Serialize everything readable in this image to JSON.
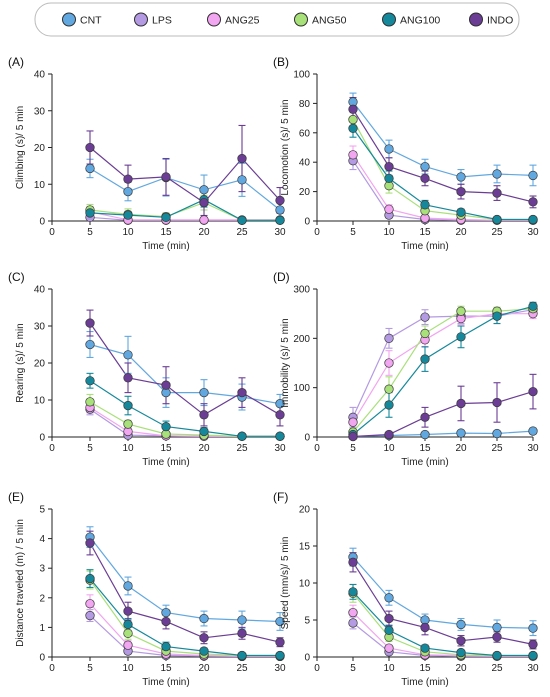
{
  "legend": [
    {
      "name": "CNT",
      "color": "#62a8e0"
    },
    {
      "name": "LPS",
      "color": "#b49ae2"
    },
    {
      "name": "ANG25",
      "color": "#f2a5f0"
    },
    {
      "name": "ANG50",
      "color": "#a8e07a"
    },
    {
      "name": "ANG100",
      "color": "#15899b"
    },
    {
      "name": "INDO",
      "color": "#6b3d94"
    }
  ],
  "chart_data": [
    {
      "type": "line",
      "panel": "(A)",
      "xlabel": "Time (min)",
      "ylabel": "Climbing (s)/ 5 min",
      "x": [
        5,
        10,
        15,
        20,
        25,
        30
      ],
      "xlim": [
        0,
        30
      ],
      "ylim": [
        0,
        40
      ],
      "xticks": [
        0,
        5,
        10,
        15,
        20,
        25,
        30
      ],
      "yticks": [
        0,
        10,
        20,
        30,
        40
      ],
      "series": [
        {
          "name": "CNT",
          "color": "#62a8e0",
          "values": [
            14.3,
            8.0,
            11.8,
            8.5,
            11.2,
            3.0
          ],
          "errors": [
            2.5,
            2.5,
            5.0,
            4.0,
            4.5,
            2.0
          ]
        },
        {
          "name": "LPS",
          "color": "#b49ae2",
          "values": [
            1.0,
            0.2,
            0.2,
            0.2,
            0.2,
            0.2
          ],
          "errors": [
            0.8,
            0.3,
            0.3,
            0.3,
            0.3,
            0.3
          ]
        },
        {
          "name": "ANG25",
          "color": "#f2a5f0",
          "values": [
            2.5,
            0.3,
            0.3,
            0.3,
            0.3,
            0.3
          ],
          "errors": [
            1.5,
            0.4,
            0.3,
            0.3,
            0.3,
            0.3
          ]
        },
        {
          "name": "ANG50",
          "color": "#a8e07a",
          "values": [
            3.0,
            1.8,
            1.2,
            5.0,
            0.2,
            0.2
          ],
          "errors": [
            1.5,
            1.5,
            1.0,
            2.0,
            0.3,
            0.3
          ]
        },
        {
          "name": "ANG100",
          "color": "#15899b",
          "values": [
            2.2,
            1.6,
            1.0,
            5.8,
            0.2,
            0.2
          ],
          "errors": [
            1.0,
            1.0,
            0.8,
            2.0,
            0.3,
            0.3
          ]
        },
        {
          "name": "INDO",
          "color": "#6b3d94",
          "values": [
            20.0,
            11.4,
            12.0,
            5.0,
            17.0,
            5.6
          ],
          "errors": [
            4.5,
            3.8,
            5.0,
            3.5,
            9.0,
            3.5
          ]
        }
      ]
    },
    {
      "type": "line",
      "panel": "(B)",
      "xlabel": "Time (min)",
      "ylabel": "Locomotion (s)/ 5 min",
      "x": [
        5,
        10,
        15,
        20,
        25,
        30
      ],
      "xlim": [
        0,
        30
      ],
      "ylim": [
        0,
        100
      ],
      "xticks": [
        0,
        5,
        10,
        15,
        20,
        25,
        30
      ],
      "yticks": [
        0,
        20,
        40,
        60,
        80,
        100
      ],
      "series": [
        {
          "name": "CNT",
          "color": "#62a8e0",
          "values": [
            81,
            49,
            37,
            30,
            32,
            31
          ],
          "errors": [
            6,
            6,
            5,
            5,
            6,
            7
          ]
        },
        {
          "name": "LPS",
          "color": "#b49ae2",
          "values": [
            41,
            4,
            1,
            0.5,
            0.5,
            0.5
          ],
          "errors": [
            6,
            2,
            1,
            0.5,
            0.5,
            0.5
          ]
        },
        {
          "name": "ANG25",
          "color": "#f2a5f0",
          "values": [
            45,
            8,
            2,
            1,
            0.5,
            0.5
          ],
          "errors": [
            6,
            3,
            1,
            0.5,
            0.5,
            0.5
          ]
        },
        {
          "name": "ANG50",
          "color": "#a8e07a",
          "values": [
            69,
            24,
            7,
            4,
            1,
            1
          ],
          "errors": [
            6,
            5,
            2,
            2,
            1,
            1
          ]
        },
        {
          "name": "ANG100",
          "color": "#15899b",
          "values": [
            63,
            29,
            11,
            6,
            1,
            1
          ],
          "errors": [
            6,
            5,
            3,
            2,
            1,
            1
          ]
        },
        {
          "name": "INDO",
          "color": "#6b3d94",
          "values": [
            76,
            37,
            29,
            20,
            19,
            13
          ],
          "errors": [
            8,
            6,
            5,
            5,
            5,
            4
          ]
        }
      ]
    },
    {
      "type": "line",
      "panel": "(C)",
      "xlabel": "Time (min)",
      "ylabel": "Rearing (s)/ 5 min",
      "x": [
        5,
        10,
        15,
        20,
        25,
        30
      ],
      "xlim": [
        0,
        30
      ],
      "ylim": [
        0,
        40
      ],
      "xticks": [
        0,
        5,
        10,
        15,
        20,
        25,
        30
      ],
      "yticks": [
        0,
        10,
        20,
        30,
        40
      ],
      "series": [
        {
          "name": "CNT",
          "color": "#62a8e0",
          "values": [
            25,
            22.2,
            12.0,
            12.0,
            10.8,
            9.0
          ],
          "errors": [
            3.5,
            5.0,
            4.0,
            3.5,
            3.5,
            2.5
          ]
        },
        {
          "name": "LPS",
          "color": "#b49ae2",
          "values": [
            7.5,
            0.5,
            0.3,
            0.2,
            0.2,
            0.2
          ],
          "errors": [
            1.5,
            0.5,
            0.3,
            0.3,
            0.3,
            0.3
          ]
        },
        {
          "name": "ANG25",
          "color": "#f2a5f0",
          "values": [
            8.0,
            1.5,
            0.3,
            0.2,
            0.2,
            0.2
          ],
          "errors": [
            1.5,
            0.8,
            0.3,
            0.3,
            0.3,
            0.3
          ]
        },
        {
          "name": "ANG50",
          "color": "#a8e07a",
          "values": [
            9.5,
            3.5,
            0.8,
            0.5,
            0.2,
            0.2
          ],
          "errors": [
            2.0,
            1.0,
            0.5,
            0.5,
            0.3,
            0.3
          ]
        },
        {
          "name": "ANG100",
          "color": "#15899b",
          "values": [
            15.2,
            8.5,
            2.8,
            1.5,
            0.2,
            0.2
          ],
          "errors": [
            2.0,
            2.5,
            1.5,
            1.0,
            0.3,
            0.3
          ]
        },
        {
          "name": "INDO",
          "color": "#6b3d94",
          "values": [
            30.8,
            16.0,
            14.0,
            6.0,
            12.0,
            6.0
          ],
          "errors": [
            3.5,
            4.0,
            5.0,
            3.0,
            4.0,
            3.0
          ]
        }
      ]
    },
    {
      "type": "line",
      "panel": "(D)",
      "xlabel": "Time (min)",
      "ylabel": "Immobility (s)/ 5 min",
      "x": [
        5,
        10,
        15,
        20,
        25,
        30
      ],
      "xlim": [
        0,
        30
      ],
      "ylim": [
        0,
        300
      ],
      "xticks": [
        0,
        5,
        10,
        15,
        20,
        25,
        30
      ],
      "yticks": [
        0,
        100,
        200,
        300
      ],
      "series": [
        {
          "name": "CNT",
          "color": "#62a8e0",
          "values": [
            1,
            3,
            5,
            8,
            7,
            12
          ],
          "errors": [
            2,
            3,
            4,
            5,
            5,
            6
          ]
        },
        {
          "name": "LPS",
          "color": "#b49ae2",
          "values": [
            40,
            200,
            243,
            245,
            245,
            258
          ],
          "errors": [
            20,
            20,
            15,
            15,
            15,
            12
          ]
        },
        {
          "name": "ANG25",
          "color": "#f2a5f0",
          "values": [
            30,
            150,
            197,
            240,
            250,
            250
          ],
          "errors": [
            15,
            25,
            15,
            12,
            10,
            10
          ]
        },
        {
          "name": "ANG50",
          "color": "#a8e07a",
          "values": [
            10,
            97,
            210,
            255,
            255,
            260
          ],
          "errors": [
            8,
            25,
            15,
            10,
            8,
            8
          ]
        },
        {
          "name": "ANG100",
          "color": "#15899b",
          "values": [
            5,
            65,
            158,
            203,
            245,
            265
          ],
          "errors": [
            5,
            25,
            25,
            22,
            15,
            8
          ]
        },
        {
          "name": "INDO",
          "color": "#6b3d94",
          "values": [
            1,
            5,
            40,
            68,
            70,
            92
          ],
          "errors": [
            2,
            5,
            20,
            35,
            40,
            35
          ]
        }
      ]
    },
    {
      "type": "line",
      "panel": "(E)",
      "xlabel": "Time (min)",
      "ylabel": "Distance traveled (m) / 5 min",
      "x": [
        5,
        10,
        15,
        20,
        25,
        30
      ],
      "xlim": [
        0,
        30
      ],
      "ylim": [
        0,
        5
      ],
      "xticks": [
        0,
        5,
        10,
        15,
        20,
        25,
        30
      ],
      "yticks": [
        0,
        1,
        2,
        3,
        4,
        5
      ],
      "series": [
        {
          "name": "CNT",
          "color": "#62a8e0",
          "values": [
            4.05,
            2.4,
            1.5,
            1.3,
            1.25,
            1.2
          ],
          "errors": [
            0.35,
            0.3,
            0.25,
            0.25,
            0.3,
            0.3
          ]
        },
        {
          "name": "LPS",
          "color": "#b49ae2",
          "values": [
            1.4,
            0.2,
            0.05,
            0.03,
            0.02,
            0.02
          ],
          "errors": [
            0.2,
            0.1,
            0.05,
            0.03,
            0.02,
            0.02
          ]
        },
        {
          "name": "ANG25",
          "color": "#f2a5f0",
          "values": [
            1.8,
            0.4,
            0.1,
            0.05,
            0.03,
            0.03
          ],
          "errors": [
            0.3,
            0.15,
            0.05,
            0.03,
            0.02,
            0.02
          ]
        },
        {
          "name": "ANG50",
          "color": "#a8e07a",
          "values": [
            2.6,
            0.8,
            0.2,
            0.1,
            0.05,
            0.05
          ],
          "errors": [
            0.3,
            0.2,
            0.1,
            0.05,
            0.03,
            0.03
          ]
        },
        {
          "name": "ANG100",
          "color": "#15899b",
          "values": [
            2.65,
            1.1,
            0.35,
            0.2,
            0.05,
            0.05
          ],
          "errors": [
            0.3,
            0.2,
            0.15,
            0.1,
            0.03,
            0.03
          ]
        },
        {
          "name": "INDO",
          "color": "#6b3d94",
          "values": [
            3.85,
            1.55,
            1.2,
            0.65,
            0.8,
            0.5
          ],
          "errors": [
            0.4,
            0.3,
            0.25,
            0.2,
            0.2,
            0.15
          ]
        }
      ]
    },
    {
      "type": "line",
      "panel": "(F)",
      "xlabel": "Time (min)",
      "ylabel": "Speed (mm/s)/ 5 min",
      "x": [
        5,
        10,
        15,
        20,
        25,
        30
      ],
      "xlim": [
        0,
        30
      ],
      "ylim": [
        0,
        20
      ],
      "xticks": [
        0,
        5,
        10,
        15,
        20,
        25,
        30
      ],
      "yticks": [
        0,
        5,
        10,
        15,
        20
      ],
      "series": [
        {
          "name": "CNT",
          "color": "#62a8e0",
          "values": [
            13.5,
            8.0,
            5.0,
            4.4,
            4.0,
            3.9
          ],
          "errors": [
            1.2,
            1.0,
            0.8,
            0.8,
            1.0,
            1.0
          ]
        },
        {
          "name": "LPS",
          "color": "#b49ae2",
          "values": [
            4.6,
            0.7,
            0.2,
            0.1,
            0.1,
            0.1
          ],
          "errors": [
            0.8,
            0.3,
            0.1,
            0.1,
            0.1,
            0.1
          ]
        },
        {
          "name": "ANG25",
          "color": "#f2a5f0",
          "values": [
            6.0,
            1.2,
            0.3,
            0.2,
            0.1,
            0.1
          ],
          "errors": [
            1.0,
            0.4,
            0.2,
            0.1,
            0.1,
            0.1
          ]
        },
        {
          "name": "ANG50",
          "color": "#a8e07a",
          "values": [
            8.6,
            2.7,
            0.7,
            0.3,
            0.2,
            0.2
          ],
          "errors": [
            1.2,
            0.6,
            0.3,
            0.2,
            0.1,
            0.1
          ]
        },
        {
          "name": "ANG100",
          "color": "#15899b",
          "values": [
            8.8,
            3.6,
            1.2,
            0.6,
            0.2,
            0.2
          ],
          "errors": [
            1.0,
            0.7,
            0.4,
            0.3,
            0.1,
            0.1
          ]
        },
        {
          "name": "INDO",
          "color": "#6b3d94",
          "values": [
            12.8,
            5.2,
            4.0,
            2.2,
            2.7,
            1.7
          ],
          "errors": [
            1.3,
            1.0,
            1.0,
            0.7,
            0.7,
            0.6
          ]
        }
      ]
    }
  ]
}
